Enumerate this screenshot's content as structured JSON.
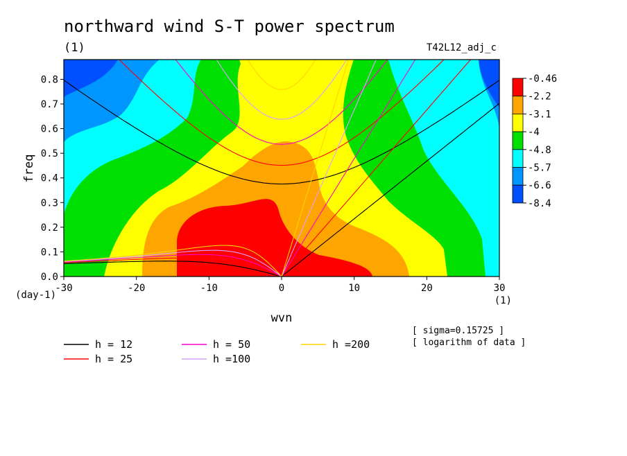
{
  "figure": {
    "title": "northward wind S-T power spectrum",
    "title_unit": "(1)",
    "run_label": "T42L12_adj_c",
    "notes": [
      "[ sigma=0.15725 ]",
      "[ logarithm of data ]"
    ]
  },
  "chart_data": {
    "type": "heatmap",
    "xlabel": "wvn",
    "x_unit": "(1)",
    "ylabel": "freq",
    "y_unit": "(day-1)",
    "xlim": [
      -30,
      30
    ],
    "ylim": [
      0,
      0.88
    ],
    "x_ticks": [
      -30,
      -20,
      -10,
      0,
      10,
      20,
      30
    ],
    "y_ticks": [
      0.0,
      0.1,
      0.2,
      0.3,
      0.4,
      0.5,
      0.6,
      0.7,
      0.8
    ],
    "y_tick_labels": [
      "0.0",
      "0.1",
      "0.2",
      "0.3",
      "0.4",
      "0.5",
      "0.6",
      "0.7",
      "0.8"
    ],
    "colorbar": {
      "levels": [
        "-0.46",
        "-2.2",
        "-3.1",
        "-4",
        "-4.8",
        "-5.7",
        "-6.6",
        "-8.4"
      ],
      "colors": [
        "#ff0000",
        "#ffa500",
        "#ffff00",
        "#00e000",
        "#00ffff",
        "#0096ff",
        "#0050ff"
      ]
    },
    "dispersion_curves": [
      {
        "label": "h = 12",
        "color": "#000000"
      },
      {
        "label": "h = 25",
        "color": "#ff0000"
      },
      {
        "label": "h = 50",
        "color": "#ff00c8"
      },
      {
        "label": "h =100",
        "color": "#dca0ff"
      },
      {
        "label": "h =200",
        "color": "#ffd200"
      }
    ]
  }
}
